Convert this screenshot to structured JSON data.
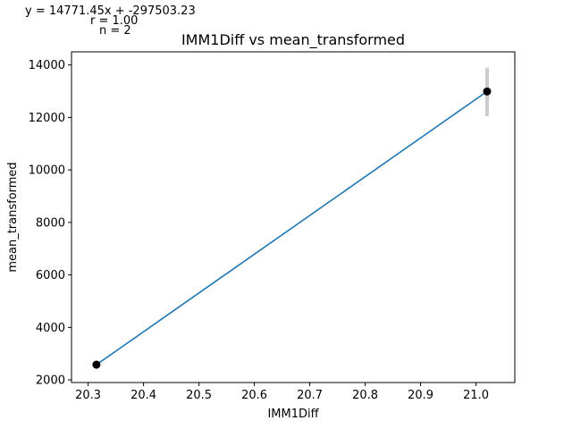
{
  "chart_data": {
    "type": "scatter",
    "title": "IMM1Diff vs mean_transformed",
    "xlabel": "IMM1Diff",
    "ylabel": "mean_transformed",
    "xlim": [
      20.27,
      21.07
    ],
    "ylim": [
      1900,
      14500
    ],
    "xticks": [
      20.3,
      20.4,
      20.5,
      20.6,
      20.7,
      20.8,
      20.9,
      21.0
    ],
    "yticks": [
      2000,
      4000,
      6000,
      8000,
      10000,
      12000,
      14000
    ],
    "grid": false,
    "points": [
      {
        "x": 20.315,
        "y": 2580
      },
      {
        "x": 21.02,
        "y": 12990,
        "err_low": 12050,
        "err_high": 13900
      }
    ],
    "fit_line": {
      "slope": 14771.45,
      "intercept": -297503.23,
      "x_range": [
        20.315,
        21.02
      ]
    },
    "annotations": {
      "equation": "y = 14771.45x + -297503.23",
      "r": "r = 1.00",
      "n": "n = 2"
    },
    "colors": {
      "line": "#1f77b4",
      "points": "#000000",
      "errorbar": "#cccccc"
    }
  }
}
